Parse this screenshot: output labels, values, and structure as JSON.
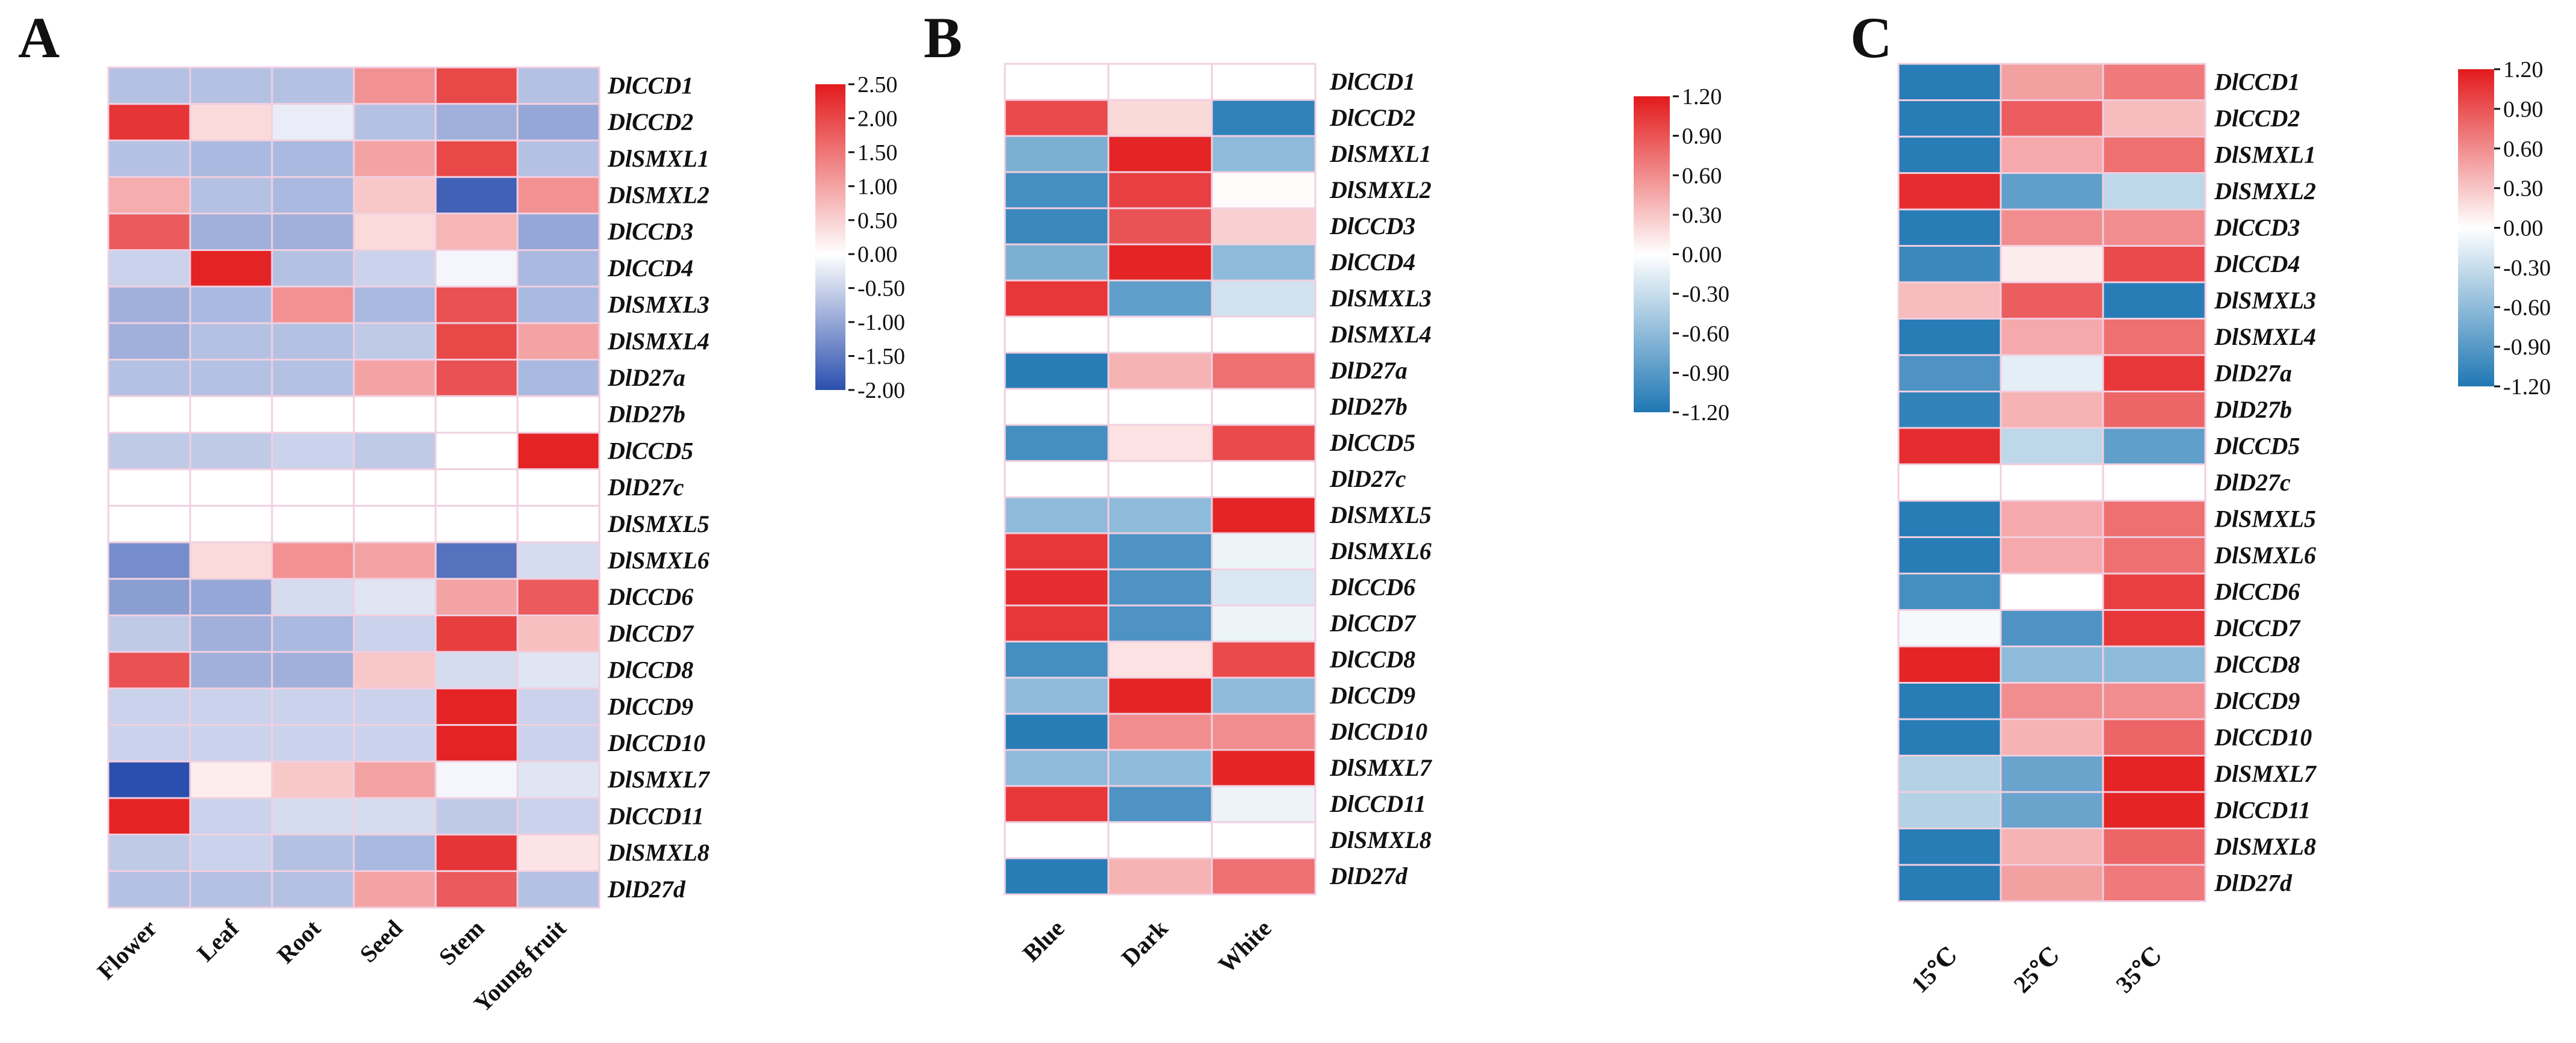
{
  "figure": {
    "panels": [
      "A",
      "B",
      "C"
    ]
  },
  "colors": {
    "low": "#2b4fae",
    "mid": "#ffffff",
    "high": "#e31a1c",
    "cell_border": "#f1cfe0"
  },
  "chart_data": [
    {
      "type": "heatmap",
      "panel": "A",
      "columns": [
        "Flower",
        "Leaf",
        "Root",
        "Seed",
        "Stem",
        "Young fruit"
      ],
      "rows": [
        "DlCCD1",
        "DlCCD2",
        "DlSMXL1",
        "DlSMXL2",
        "DlCCD3",
        "DlCCD4",
        "DlSMXL3",
        "DlSMXL4",
        "DlD27a",
        "DlD27b",
        "DlCCD5",
        "DlD27c",
        "DlSMXL5",
        "DlSMXL6",
        "DlCCD6",
        "DlCCD7",
        "DlCCD8",
        "DlCCD9",
        "DlCCD10",
        "DlSMXL7",
        "DlCCD11",
        "DlSMXL8",
        "DlD27d"
      ],
      "values": [
        [
          -0.7,
          -0.7,
          -0.7,
          1.2,
          2.0,
          -0.7
        ],
        [
          2.2,
          0.4,
          -0.2,
          -0.7,
          -0.9,
          -1.0
        ],
        [
          -0.7,
          -0.8,
          -0.8,
          1.0,
          2.0,
          -0.7
        ],
        [
          0.9,
          -0.7,
          -0.8,
          0.6,
          -1.8,
          1.2
        ],
        [
          1.8,
          -0.9,
          -0.9,
          0.4,
          0.8,
          -1.0
        ],
        [
          -0.5,
          2.4,
          -0.7,
          -0.5,
          -0.1,
          -0.8
        ],
        [
          -0.9,
          -0.8,
          1.2,
          -0.8,
          1.9,
          -0.8
        ],
        [
          -0.9,
          -0.7,
          -0.7,
          -0.6,
          2.0,
          1.0
        ],
        [
          -0.7,
          -0.7,
          -0.7,
          1.0,
          1.9,
          -0.8
        ],
        [
          0,
          0,
          0,
          0,
          0,
          0
        ],
        [
          -0.6,
          -0.6,
          -0.5,
          -0.6,
          0,
          2.4
        ],
        [
          0,
          0,
          0,
          0,
          0,
          0
        ],
        [
          0,
          0,
          0,
          0,
          0,
          0
        ],
        [
          -1.3,
          0.4,
          1.2,
          1.0,
          -1.6,
          -0.4
        ],
        [
          -1.1,
          -1.0,
          -0.4,
          -0.3,
          1.0,
          1.8
        ],
        [
          -0.6,
          -0.9,
          -0.8,
          -0.5,
          2.1,
          0.7
        ],
        [
          1.9,
          -0.9,
          -0.9,
          0.6,
          -0.4,
          -0.3
        ],
        [
          -0.5,
          -0.5,
          -0.5,
          -0.5,
          2.4,
          -0.5
        ],
        [
          -0.5,
          -0.5,
          -0.5,
          -0.5,
          2.4,
          -0.5
        ],
        [
          -2.0,
          0.2,
          0.6,
          1.0,
          -0.1,
          -0.3
        ],
        [
          2.4,
          -0.5,
          -0.4,
          -0.4,
          -0.6,
          -0.5
        ],
        [
          -0.6,
          -0.5,
          -0.7,
          -0.8,
          2.2,
          0.3
        ],
        [
          -0.7,
          -0.7,
          -0.7,
          1.0,
          1.8,
          -0.7
        ]
      ],
      "colorbar": {
        "range": [
          -2.0,
          2.5
        ],
        "ticks": [
          "2.50",
          "2.00",
          "1.50",
          "1.00",
          "0.50",
          "0.00",
          "-0.50",
          "-1.00",
          "-1.50",
          "-2.00"
        ]
      }
    },
    {
      "type": "heatmap",
      "panel": "B",
      "columns": [
        "Blue",
        "Dark",
        "White"
      ],
      "rows": [
        "DlCCD1",
        "DlCCD2",
        "DlSMXL1",
        "DlSMXL2",
        "DlCCD3",
        "DlCCD4",
        "DlSMXL3",
        "DlSMXL4",
        "DlD27a",
        "DlD27b",
        "DlCCD5",
        "DlD27c",
        "DlSMXL5",
        "DlSMXL6",
        "DlCCD6",
        "DlCCD7",
        "DlCCD8",
        "DlCCD9",
        "DlCCD10",
        "DlSMXL7",
        "DlCCD11",
        "DlSMXL8",
        "DlD27d"
      ],
      "values": [
        [
          0,
          0,
          0
        ],
        [
          0.95,
          0.2,
          -1.1
        ],
        [
          -0.7,
          1.15,
          -0.6
        ],
        [
          -1.0,
          1.0,
          0.02
        ],
        [
          -1.05,
          0.9,
          0.25
        ],
        [
          -0.7,
          1.15,
          -0.6
        ],
        [
          1.05,
          -0.85,
          -0.25
        ],
        [
          0,
          0,
          0
        ],
        [
          -1.15,
          0.4,
          0.75
        ],
        [
          0,
          0,
          0
        ],
        [
          -1.0,
          0.15,
          0.95
        ],
        [
          0,
          0,
          0
        ],
        [
          -0.6,
          -0.6,
          1.15
        ],
        [
          1.05,
          -0.95,
          -0.1
        ],
        [
          1.1,
          -0.95,
          -0.2
        ],
        [
          1.05,
          -0.95,
          -0.1
        ],
        [
          -1.0,
          0.15,
          0.95
        ],
        [
          -0.6,
          1.15,
          -0.6
        ],
        [
          -1.15,
          0.6,
          0.6
        ],
        [
          -0.6,
          -0.6,
          1.15
        ],
        [
          1.05,
          -0.95,
          -0.1
        ],
        [
          0,
          0,
          0
        ],
        [
          -1.15,
          0.4,
          0.75
        ]
      ],
      "colorbar": {
        "range": [
          -1.2,
          1.2
        ],
        "ticks": [
          "1.20",
          "0.90",
          "0.60",
          "0.30",
          "0.00",
          "-0.30",
          "-0.60",
          "-0.90",
          "-1.20"
        ]
      }
    },
    {
      "type": "heatmap",
      "panel": "C",
      "columns": [
        "15℃",
        "25℃",
        "35℃"
      ],
      "rows": [
        "DlCCD1",
        "DlCCD2",
        "DlSMXL1",
        "DlSMXL2",
        "DlCCD3",
        "DlCCD4",
        "DlSMXL3",
        "DlSMXL4",
        "DlD27a",
        "DlD27b",
        "DlCCD5",
        "DlD27c",
        "DlSMXL5",
        "DlSMXL6",
        "DlCCD6",
        "DlCCD7",
        "DlCCD8",
        "DlCCD9",
        "DlCCD10",
        "DlSMXL7",
        "DlCCD11",
        "DlSMXL8",
        "DlD27d"
      ],
      "values": [
        [
          -1.15,
          0.5,
          0.7
        ],
        [
          -1.15,
          0.85,
          0.35
        ],
        [
          -1.15,
          0.45,
          0.75
        ],
        [
          1.1,
          -0.85,
          -0.35
        ],
        [
          -1.15,
          0.6,
          0.6
        ],
        [
          -1.05,
          0.1,
          0.95
        ],
        [
          0.35,
          0.85,
          -1.15
        ],
        [
          -1.15,
          0.45,
          0.75
        ],
        [
          -0.95,
          -0.15,
          1.05
        ],
        [
          -1.1,
          0.4,
          0.8
        ],
        [
          1.1,
          -0.35,
          -0.85
        ],
        [
          0,
          0,
          0
        ],
        [
          -1.15,
          0.45,
          0.75
        ],
        [
          -1.15,
          0.45,
          0.75
        ],
        [
          -1.0,
          0.0,
          1.0
        ],
        [
          -0.05,
          -0.95,
          1.05
        ],
        [
          1.15,
          -0.6,
          -0.6
        ],
        [
          -1.15,
          0.6,
          0.6
        ],
        [
          -1.15,
          0.4,
          0.8
        ],
        [
          -0.4,
          -0.8,
          1.15
        ],
        [
          -0.4,
          -0.8,
          1.15
        ],
        [
          -1.15,
          0.4,
          0.8
        ],
        [
          -1.15,
          0.5,
          0.7
        ]
      ],
      "colorbar": {
        "range": [
          -1.2,
          1.2
        ],
        "ticks": [
          "1.20",
          "0.90",
          "0.60",
          "0.30",
          "0.00",
          "-0.30",
          "-0.60",
          "-0.90",
          "-1.20"
        ]
      }
    }
  ]
}
